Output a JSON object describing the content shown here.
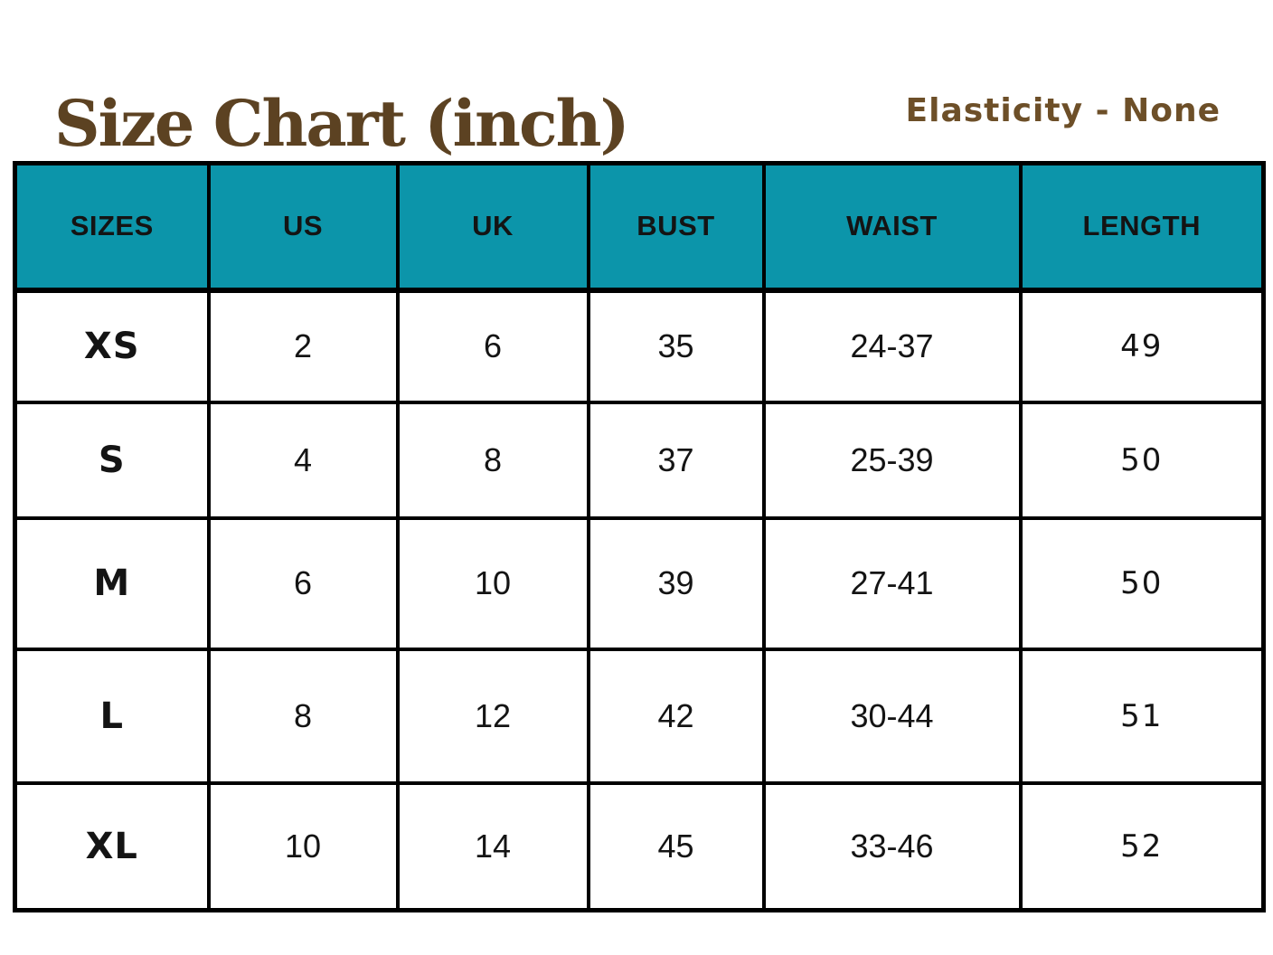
{
  "title": "Size Chart (inch)",
  "elasticity_label": "Elasticity - None",
  "colors": {
    "header_bg": "#0c95aa",
    "header_text": "#ffffff",
    "title_text": "#5c4222",
    "elasticity_text": "#6d4f28",
    "border": "#000000",
    "cell_text": "#141414",
    "background": "#ffffff"
  },
  "table": {
    "headers": [
      "SIZES",
      "US",
      "UK",
      "BUST",
      "WAIST",
      "LENGTH"
    ],
    "rows": [
      [
        "XS",
        "2",
        "6",
        "35",
        "24-37",
        "49"
      ],
      [
        "S",
        "4",
        "8",
        "37",
        "25-39",
        "50"
      ],
      [
        "M",
        "6",
        "10",
        "39",
        "27-41",
        "50"
      ],
      [
        "L",
        "8",
        "12",
        "42",
        "30-44",
        "51"
      ],
      [
        "XL",
        "10",
        "14",
        "45",
        "33-46",
        "52"
      ]
    ]
  }
}
